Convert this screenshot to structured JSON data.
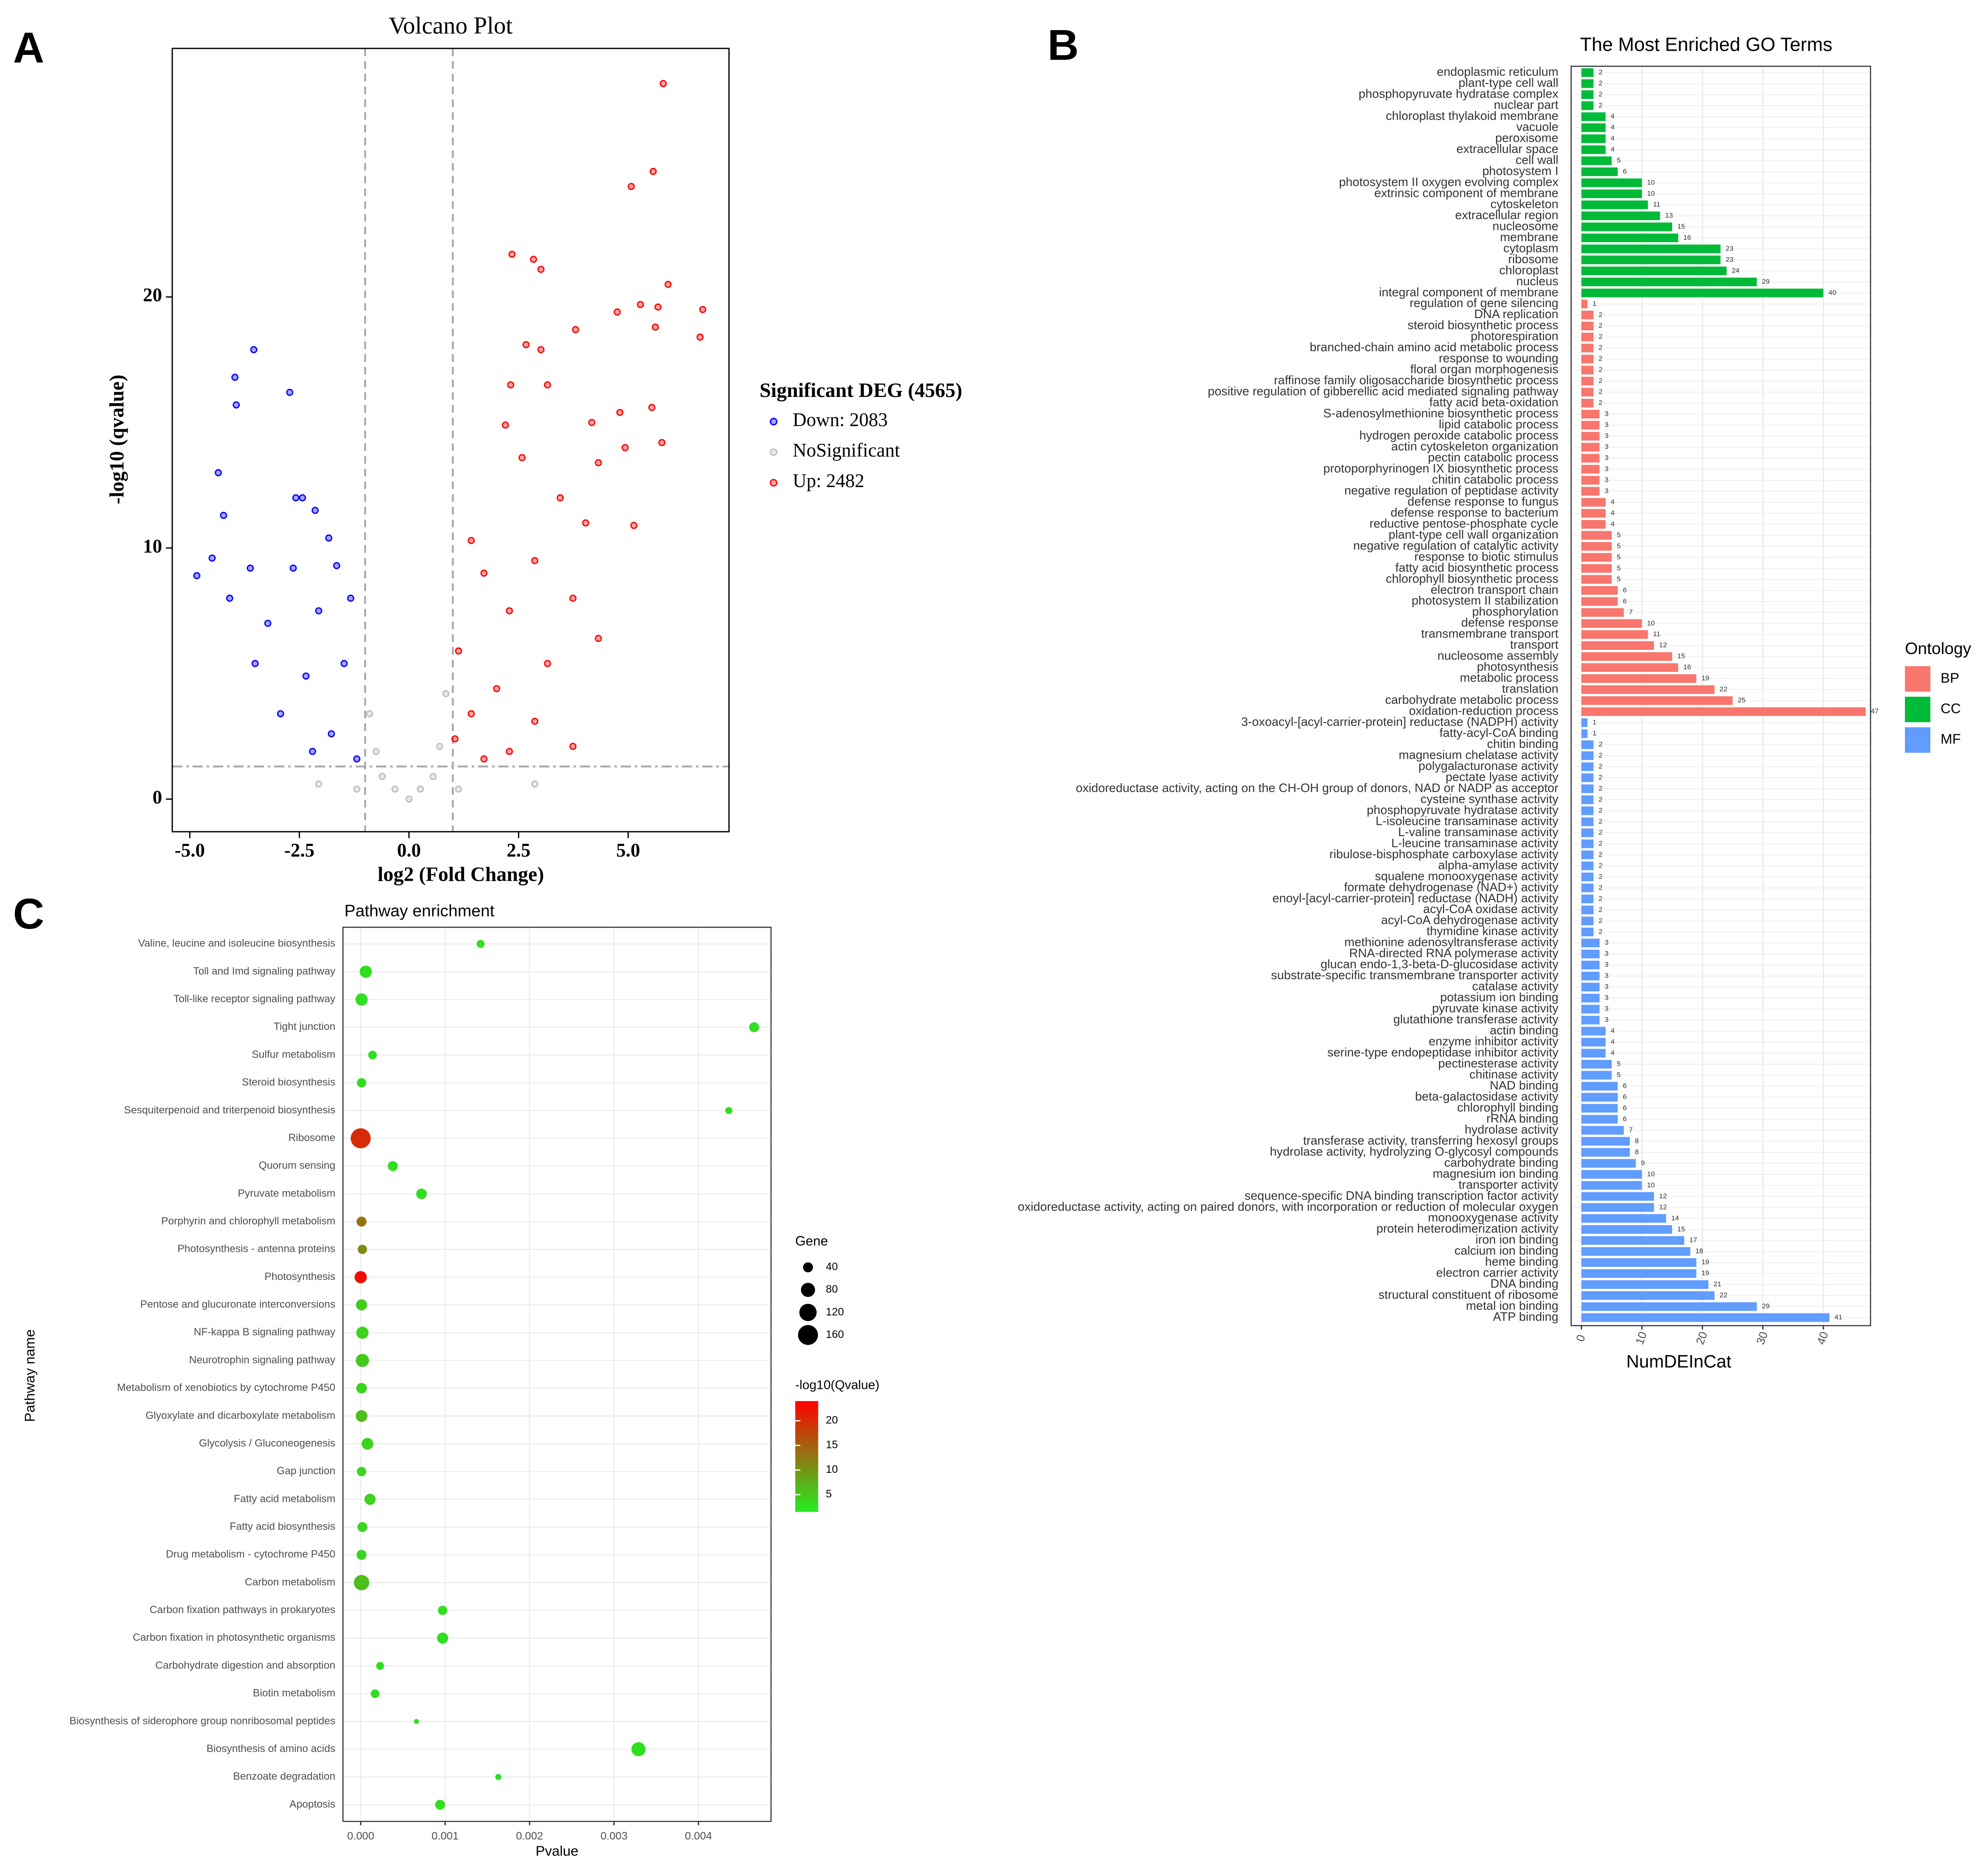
{
  "chart_data": [
    {
      "type": "scatter",
      "panel_label": "A",
      "title": "Volcano Plot",
      "xlabel": "log2 (Fold Change)",
      "ylabel": "-log10 (qvalue)",
      "xlim": [
        -5.4,
        7.3
      ],
      "ylim": [
        -1.3,
        29.9
      ],
      "xticks": [
        {
          "value": -5,
          "label": "-5.0"
        },
        -2.5,
        {
          "value": 0,
          "label": "0.0"
        },
        2.5,
        {
          "value": 5,
          "label": "5.0"
        }
      ],
      "yticks": [
        0,
        10,
        20
      ],
      "vlines": [
        -1,
        1
      ],
      "hline": 1.3,
      "legend_title": "Significant DEG (4565)",
      "series": [
        {
          "name": "Down: 2083",
          "color": "#0000ff",
          "x": [
            -3.54,
            -3.97,
            -2.72,
            -3.94,
            -4.35,
            -4.23,
            -2.58,
            -2.43,
            -2.14,
            -1.83,
            -4.84,
            -4.49,
            -3.62,
            -2.64,
            -1.65,
            -4.09,
            -3.22,
            -2.06,
            -1.33,
            -3.51,
            -2.35,
            -1.48,
            -2.93,
            -1.77,
            -2.2,
            -1.19
          ],
          "y": [
            17.9,
            16.8,
            16.2,
            15.7,
            13.0,
            11.3,
            12.0,
            12.0,
            11.5,
            10.4,
            8.9,
            9.6,
            9.2,
            9.2,
            9.3,
            8.0,
            7.0,
            7.5,
            8.0,
            5.4,
            4.9,
            5.4,
            3.4,
            2.6,
            1.9,
            1.6
          ]
        },
        {
          "name": "NoSignificant",
          "color": "#bebebe",
          "x": [
            0,
            -0.61,
            0.55,
            -1.19,
            1.13,
            -0.9,
            0.84,
            -2.06,
            2.87,
            -0.32,
            0.26,
            -0.75,
            0.7
          ],
          "y": [
            0,
            0.9,
            0.9,
            0.4,
            0.4,
            3.4,
            4.2,
            0.6,
            0.6,
            0.4,
            0.4,
            1.9,
            2.1
          ]
        },
        {
          "name": "Up: 2482",
          "color": "#ff0000",
          "x": [
            5.8,
            5.57,
            5.07,
            2.35,
            2.84,
            3.01,
            5.91,
            5.28,
            6.7,
            5.68,
            4.75,
            6.64,
            3.8,
            5.62,
            2.67,
            3.01,
            2.32,
            3.16,
            4.81,
            5.54,
            4.17,
            2.2,
            5.77,
            4.93,
            4.32,
            2.58,
            3.45,
            4.03,
            5.13,
            1.42,
            2.87,
            1.71,
            3.74,
            2.29,
            4.32,
            1.13,
            3.16,
            2.0,
            1.42,
            2.87,
            1.05,
            2.29,
            3.74,
            1.71
          ],
          "y": [
            28.5,
            25.0,
            24.4,
            21.7,
            21.5,
            21.1,
            20.5,
            19.7,
            19.5,
            19.6,
            19.4,
            18.4,
            18.7,
            18.8,
            18.1,
            17.9,
            16.5,
            16.5,
            15.4,
            15.6,
            15.0,
            14.9,
            14.2,
            14.0,
            13.4,
            13.6,
            12.0,
            11.0,
            10.9,
            10.3,
            9.5,
            9.0,
            8.0,
            7.5,
            6.4,
            5.9,
            5.4,
            4.4,
            3.4,
            3.1,
            2.4,
            1.9,
            2.1,
            1.6
          ]
        }
      ]
    },
    {
      "type": "barh",
      "panel_label": "B",
      "title": "The Most Enriched GO Terms",
      "xlabel": "NumDEInCat",
      "legend_title": "Ontology",
      "xlim": [
        -1.7,
        47.8
      ],
      "xticks": [
        0,
        10,
        20,
        30,
        40
      ],
      "grid": true,
      "series": [
        {
          "name": "CC",
          "color": "#00ba38",
          "categories": [
            "endoplasmic reticulum",
            "plant-type cell wall",
            "phosphopyruvate hydratase complex",
            "nuclear part",
            "chloroplast thylakoid membrane",
            "vacuole",
            "peroxisome",
            "extracellular space",
            "cell wall",
            "photosystem I",
            "photosystem II oxygen evolving complex",
            "extrinsic component of membrane",
            "cytoskeleton",
            "extracellular region",
            "nucleosome",
            "membrane",
            "cytoplasm",
            "ribosome",
            "chloroplast",
            "nucleus",
            "integral component of membrane"
          ],
          "values": [
            2,
            2,
            2,
            2,
            4,
            4,
            4,
            4,
            5,
            6,
            10,
            10,
            11,
            13,
            15,
            16,
            23,
            23,
            24,
            29,
            40
          ]
        },
        {
          "name": "BP",
          "color": "#f8766d",
          "categories": [
            "regulation of gene silencing",
            "DNA replication",
            "steroid biosynthetic process",
            "photorespiration",
            "branched-chain amino acid metabolic process",
            "response to wounding",
            "floral organ morphogenesis",
            "raffinose family oligosaccharide biosynthetic process",
            "positive regulation of gibberellic acid mediated signaling pathway",
            "fatty acid beta-oxidation",
            "S-adenosylmethionine biosynthetic process",
            "lipid catabolic process",
            "hydrogen peroxide catabolic process",
            "actin cytoskeleton organization",
            "pectin catabolic process",
            "protoporphyrinogen IX biosynthetic process",
            "chitin catabolic process",
            "negative regulation of peptidase activity",
            "defense response to fungus",
            "defense response to bacterium",
            "reductive pentose-phosphate cycle",
            "plant-type cell wall organization",
            "negative regulation of catalytic activity",
            "response to biotic stimulus",
            "fatty acid biosynthetic process",
            "chlorophyll biosynthetic process",
            "electron transport chain",
            "photosystem II stabilization",
            "phosphorylation",
            "defense response",
            "transmembrane transport",
            "transport",
            "nucleosome assembly",
            "photosynthesis",
            "metabolic process",
            "translation",
            "carbohydrate metabolic process",
            "oxidation-reduction process"
          ],
          "values": [
            1,
            2,
            2,
            2,
            2,
            2,
            2,
            2,
            2,
            2,
            3,
            3,
            3,
            3,
            3,
            3,
            3,
            3,
            4,
            4,
            4,
            5,
            5,
            5,
            5,
            5,
            6,
            6,
            7,
            10,
            11,
            12,
            15,
            16,
            19,
            22,
            25,
            47
          ]
        },
        {
          "name": "MF",
          "color": "#619cff",
          "categories": [
            "3-oxoacyl-[acyl-carrier-protein] reductase (NADPH) activity",
            "fatty-acyl-CoA binding",
            "chitin binding",
            "magnesium chelatase activity",
            "polygalacturonase activity",
            "pectate lyase activity",
            "oxidoreductase activity, acting on the CH-OH group of donors, NAD or NADP as acceptor",
            "cysteine synthase activity",
            "phosphopyruvate hydratase activity",
            "L-isoleucine transaminase activity",
            "L-valine transaminase activity",
            "L-leucine transaminase activity",
            "ribulose-bisphosphate carboxylase activity",
            "alpha-amylase activity",
            "squalene monooxygenase activity",
            "formate dehydrogenase (NAD+) activity",
            "enoyl-[acyl-carrier-protein] reductase (NADH) activity",
            "acyl-CoA oxidase activity",
            "acyl-CoA dehydrogenase activity",
            "thymidine kinase activity",
            "methionine adenosyltransferase activity",
            "RNA-directed RNA polymerase activity",
            "glucan endo-1,3-beta-D-glucosidase activity",
            "substrate-specific transmembrane transporter activity",
            "catalase activity",
            "potassium ion binding",
            "pyruvate kinase activity",
            "glutathione transferase activity",
            "actin binding",
            "enzyme inhibitor activity",
            "serine-type endopeptidase inhibitor activity",
            "pectinesterase activity",
            "chitinase activity",
            "NAD binding",
            "beta-galactosidase activity",
            "chlorophyll binding",
            "rRNA binding",
            "hydrolase activity",
            "transferase activity, transferring hexosyl groups",
            "hydrolase activity, hydrolyzing O-glycosyl compounds",
            "carbohydrate binding",
            "magnesium ion binding",
            "transporter activity",
            "sequence-specific DNA binding transcription factor activity",
            "oxidoreductase activity, acting on paired donors, with incorporation or reduction of molecular oxygen",
            "monooxygenase activity",
            "protein heterodimerization activity",
            "iron ion binding",
            "calcium ion binding",
            "heme binding",
            "electron carrier activity",
            "DNA binding",
            "structural constituent of ribosome",
            "metal ion binding",
            "ATP binding"
          ],
          "values": [
            1,
            1,
            2,
            2,
            2,
            2,
            2,
            2,
            2,
            2,
            2,
            2,
            2,
            2,
            2,
            2,
            2,
            2,
            2,
            2,
            3,
            3,
            3,
            3,
            3,
            3,
            3,
            3,
            4,
            4,
            4,
            5,
            5,
            6,
            6,
            6,
            6,
            7,
            8,
            8,
            9,
            10,
            10,
            12,
            12,
            14,
            15,
            17,
            18,
            19,
            19,
            21,
            22,
            29,
            41
          ]
        }
      ]
    },
    {
      "type": "bubble",
      "panel_label": "C",
      "title": "Pathway enrichment",
      "xlabel": "Pvalue",
      "ylabel": "Pathway name",
      "xlim": [
        -0.00021,
        0.00486
      ],
      "xticks": [
        {
          "value": 0,
          "label": "0.000"
        },
        0.001,
        0.002,
        0.003,
        0.004
      ],
      "grid": true,
      "categories": [
        "Valine, leucine and isoleucine biosynthesis",
        "Toll and Imd signaling pathway",
        "Toll-like receptor signaling pathway",
        "Tight junction",
        "Sulfur metabolism",
        "Steroid biosynthesis",
        "Sesquiterpenoid and triterpenoid biosynthesis",
        "Ribosome",
        "Quorum sensing",
        "Pyruvate metabolism",
        "Porphyrin and chlorophyll metabolism",
        "Photosynthesis - antenna proteins",
        "Photosynthesis",
        "Pentose and glucuronate interconversions",
        "NF-kappa B signaling pathway",
        "Neurotrophin signaling pathway",
        "Metabolism of xenobiotics by cytochrome P450",
        "Glyoxylate and dicarboxylate metabolism",
        "Glycolysis / Gluconeogenesis",
        "Gap junction",
        "Fatty acid metabolism",
        "Fatty acid biosynthesis",
        "Drug metabolism - cytochrome P450",
        "Carbon metabolism",
        "Carbon fixation pathways in prokaryotes",
        "Carbon fixation in photosynthetic organisms",
        "Carbohydrate digestion and absorption",
        "Biotin metabolism",
        "Biosynthesis of siderophore group nonribosomal peptides",
        "Biosynthesis of amino acids",
        "Benzoate degradation",
        "Apoptosis"
      ],
      "x": [
        0.00142,
        6e-05,
        1e-05,
        0.00466,
        0.00014,
        1e-05,
        0.00436,
        0,
        0.00038,
        0.00072,
        1e-05,
        2e-05,
        0,
        1e-05,
        2e-05,
        2e-05,
        1e-05,
        1e-05,
        8e-05,
        1e-05,
        0.00011,
        2e-05,
        1e-05,
        1e-05,
        0.00097,
        0.00097,
        0.00023,
        0.00017,
        0.00066,
        0.00329,
        0.00163,
        0.00094
      ],
      "gene": [
        25,
        60,
        60,
        40,
        30,
        35,
        20,
        160,
        40,
        45,
        40,
        35,
        60,
        50,
        60,
        70,
        45,
        55,
        55,
        35,
        50,
        40,
        40,
        95,
        35,
        50,
        25,
        30,
        10,
        80,
        15,
        40
      ],
      "qvalue": [
        3,
        3,
        3,
        3,
        3,
        3,
        3,
        20,
        3,
        3,
        13,
        11,
        23,
        5,
        4,
        5,
        4,
        6,
        4,
        4,
        4,
        4,
        4,
        6,
        3,
        3,
        3,
        3,
        3,
        3,
        3,
        3
      ],
      "size_title": "Gene",
      "size_legend": [
        40,
        80,
        120,
        160
      ],
      "color_title": "-log10(Qvalue)",
      "colors": [
        "#22ee22",
        "#ff0000"
      ],
      "colorlim": [
        1.5,
        24
      ],
      "colorticks": [
        5,
        10,
        15,
        20
      ]
    }
  ]
}
